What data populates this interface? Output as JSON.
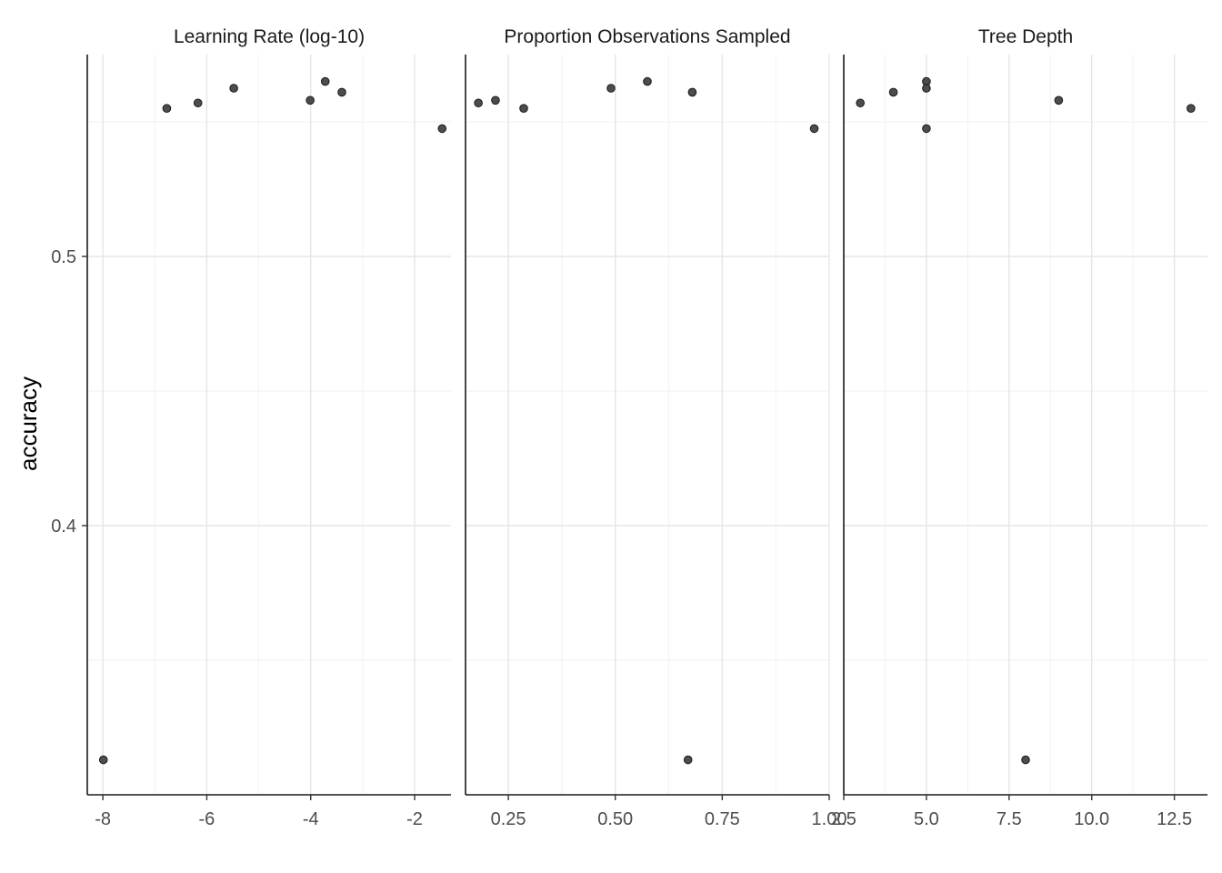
{
  "chart_data": {
    "type": "scatter",
    "ylabel": "accuracy",
    "y_ticks": [
      0.4,
      0.5
    ],
    "y_tick_labels": [
      "0.4",
      "0.5"
    ],
    "ylim": [
      0.3,
      0.575
    ],
    "panels": [
      {
        "title": "Learning Rate (log-10)",
        "xlim": [
          -8.3,
          -1.3
        ],
        "x_ticks": [
          -8,
          -6,
          -4,
          -2
        ],
        "x_tick_labels": [
          "-8",
          "-6",
          "-4",
          "-2"
        ],
        "points": [
          {
            "x": -7.99,
            "y": 0.313
          },
          {
            "x": -6.77,
            "y": 0.555
          },
          {
            "x": -6.17,
            "y": 0.557
          },
          {
            "x": -5.48,
            "y": 0.5625
          },
          {
            "x": -4.01,
            "y": 0.558
          },
          {
            "x": -3.72,
            "y": 0.565
          },
          {
            "x": -3.4,
            "y": 0.561
          },
          {
            "x": -1.47,
            "y": 0.5475
          }
        ]
      },
      {
        "title": "Proportion Observations Sampled",
        "xlim": [
          0.15,
          1.0
        ],
        "x_ticks": [
          0.25,
          0.5,
          0.75,
          1.0
        ],
        "x_tick_labels": [
          "0.25",
          "0.50",
          "0.75",
          "1.00"
        ],
        "points": [
          {
            "x": 0.18,
            "y": 0.557
          },
          {
            "x": 0.22,
            "y": 0.558
          },
          {
            "x": 0.286,
            "y": 0.555
          },
          {
            "x": 0.49,
            "y": 0.5625
          },
          {
            "x": 0.575,
            "y": 0.565
          },
          {
            "x": 0.67,
            "y": 0.313
          },
          {
            "x": 0.68,
            "y": 0.561
          },
          {
            "x": 0.965,
            "y": 0.5475
          }
        ]
      },
      {
        "title": "Tree Depth",
        "xlim": [
          2.5,
          13.5
        ],
        "x_ticks": [
          2.5,
          5.0,
          7.5,
          10.0,
          12.5
        ],
        "x_tick_labels": [
          "2.5",
          "5.0",
          "7.5",
          "10.0",
          "12.5"
        ],
        "points": [
          {
            "x": 3,
            "y": 0.557
          },
          {
            "x": 4,
            "y": 0.561
          },
          {
            "x": 5,
            "y": 0.565
          },
          {
            "x": 5,
            "y": 0.5625
          },
          {
            "x": 5,
            "y": 0.5475
          },
          {
            "x": 8,
            "y": 0.313
          },
          {
            "x": 9,
            "y": 0.558
          },
          {
            "x": 13,
            "y": 0.555
          }
        ]
      }
    ]
  }
}
